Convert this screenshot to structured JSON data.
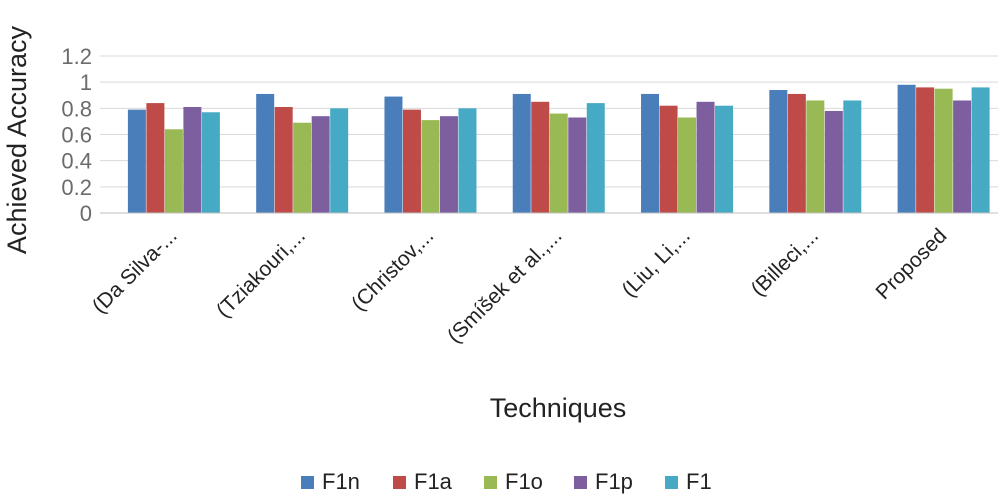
{
  "chart_data": {
    "type": "bar",
    "title": "",
    "xlabel": "Techniques",
    "ylabel": "Achieved Accuracy",
    "ylim": [
      0,
      1.2
    ],
    "yticks": [
      "0",
      "0.2",
      "0.4",
      "0.6",
      "0.8",
      "1",
      "1.2"
    ],
    "grid": true,
    "legend_position": "bottom",
    "categories": [
      "(Da Silva-...",
      "(Tziakouri,...",
      "(Christov,...",
      "(Smíšek et al.,...",
      "(Liu, Li,...",
      "(Billeci,...",
      "Proposed"
    ],
    "series": [
      {
        "name": "F1n",
        "color": "#4a7ebb",
        "values": [
          0.79,
          0.91,
          0.89,
          0.91,
          0.91,
          0.94,
          0.98
        ]
      },
      {
        "name": "F1a",
        "color": "#be4b48",
        "values": [
          0.84,
          0.81,
          0.79,
          0.85,
          0.82,
          0.91,
          0.96
        ]
      },
      {
        "name": "F1o",
        "color": "#98b954",
        "values": [
          0.64,
          0.69,
          0.71,
          0.76,
          0.73,
          0.86,
          0.95
        ]
      },
      {
        "name": "F1p",
        "color": "#7d5fa0",
        "values": [
          0.81,
          0.74,
          0.74,
          0.73,
          0.85,
          0.78,
          0.86
        ]
      },
      {
        "name": "F1",
        "color": "#46aac5",
        "values": [
          0.77,
          0.8,
          0.8,
          0.84,
          0.82,
          0.86,
          0.96
        ]
      }
    ]
  }
}
